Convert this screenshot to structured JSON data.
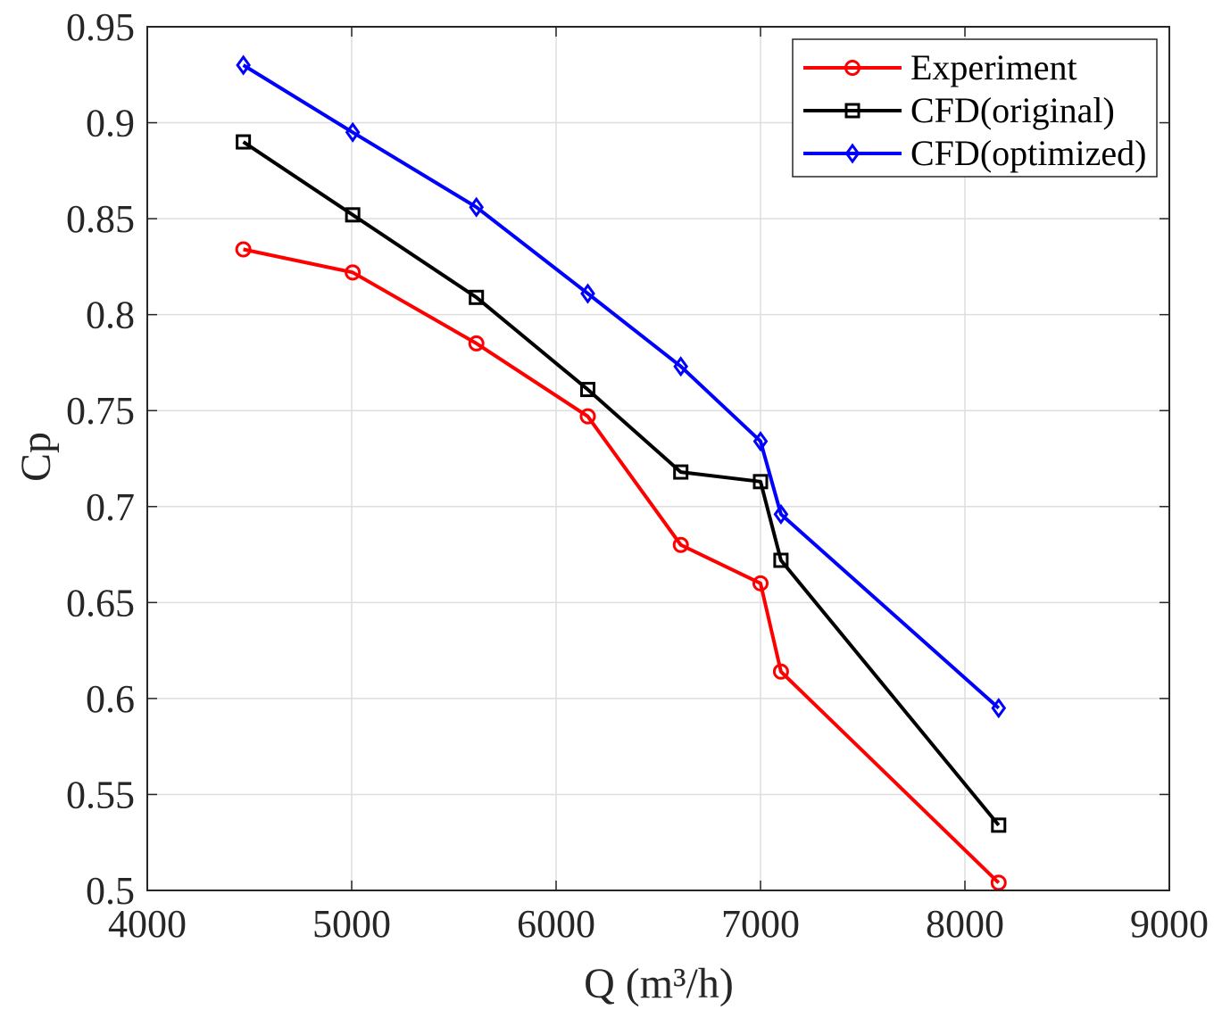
{
  "chart_data": {
    "type": "line",
    "title": "",
    "xlabel": "Q (m³/h)",
    "ylabel": "Cp",
    "xlim": [
      4000,
      9000
    ],
    "ylim": [
      0.5,
      0.95
    ],
    "xticks": [
      4000,
      5000,
      6000,
      7000,
      8000,
      9000
    ],
    "xtick_labels": [
      "4000",
      "5000",
      "6000",
      "7000",
      "8000",
      "9000"
    ],
    "yticks": [
      0.5,
      0.55,
      0.6,
      0.65,
      0.7,
      0.75,
      0.8,
      0.85,
      0.9,
      0.95
    ],
    "ytick_labels": [
      "0.5",
      "0.55",
      "0.6",
      "0.65",
      "0.7",
      "0.75",
      "0.8",
      "0.85",
      "0.9",
      "0.95"
    ],
    "grid": true,
    "legend_position": "top-right",
    "series": [
      {
        "name": "Experiment",
        "color": "#ff0000",
        "marker": "circle",
        "x": [
          4470,
          5005,
          5610,
          6155,
          6610,
          7000,
          7100,
          8165
        ],
        "y": [
          0.834,
          0.822,
          0.785,
          0.747,
          0.68,
          0.66,
          0.614,
          0.504
        ]
      },
      {
        "name": "CFD(original)",
        "color": "#000000",
        "marker": "square",
        "x": [
          4470,
          5005,
          5610,
          6155,
          6610,
          7000,
          7100,
          8165
        ],
        "y": [
          0.89,
          0.852,
          0.809,
          0.761,
          0.718,
          0.713,
          0.672,
          0.534
        ]
      },
      {
        "name": "CFD(optimized)",
        "color": "#0000ff",
        "marker": "diamond",
        "x": [
          4470,
          5005,
          5610,
          6155,
          6610,
          7000,
          7100,
          8165
        ],
        "y": [
          0.93,
          0.895,
          0.856,
          0.811,
          0.773,
          0.734,
          0.696,
          0.595
        ]
      }
    ]
  }
}
